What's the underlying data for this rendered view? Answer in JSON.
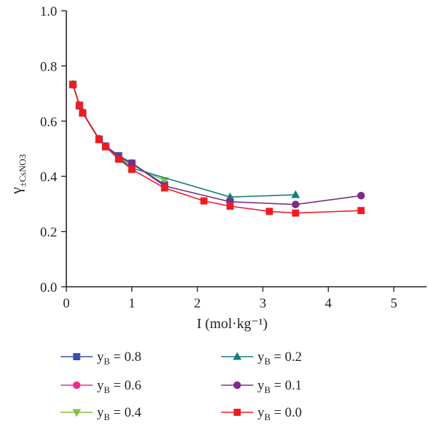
{
  "chart_data": {
    "type": "line",
    "xlabel": "I (mol·kg⁻¹)",
    "ylabel": {
      "main": "γ",
      "sub": "±CsNO3"
    },
    "xlim": [
      0,
      5.5
    ],
    "ylim": [
      0,
      1.0
    ],
    "x_ticks": [
      0,
      1,
      2,
      3,
      4,
      5
    ],
    "y_ticks": [
      0.0,
      0.2,
      0.4,
      0.6,
      0.8,
      1.0
    ],
    "x_tick_labels": [
      "0",
      "1",
      "2",
      "3",
      "4",
      "5"
    ],
    "y_tick_labels": [
      "0.0",
      "0.2",
      "0.4",
      "0.6",
      "0.8",
      "1.0"
    ],
    "grid": false,
    "legend_position": "bottom",
    "series": [
      {
        "name": "y_B = 0.8",
        "label_main": "y",
        "label_sub": "B",
        "label_rest": " = 0.8",
        "color": "#3c4fa8",
        "marker": "square",
        "x": [
          0.1,
          0.2,
          0.25,
          0.5,
          0.6,
          0.8,
          1.0,
          1.5
        ],
        "y": [
          0.732,
          0.655,
          0.63,
          0.535,
          0.51,
          0.475,
          0.448,
          0.37
        ]
      },
      {
        "name": "y_B = 0.6",
        "label_main": "y",
        "label_sub": "B",
        "label_rest": " = 0.6",
        "color": "#ec2d8f",
        "marker": "circle",
        "x": [
          0.1,
          0.2,
          0.25,
          0.5,
          0.6,
          0.8,
          1.0
        ],
        "y": [
          0.733,
          0.657,
          0.632,
          0.536,
          0.508,
          0.468,
          0.44
        ]
      },
      {
        "name": "y_B = 0.4",
        "label_main": "y",
        "label_sub": "B",
        "label_rest": " = 0.4",
        "color": "#7dc242",
        "marker": "triangle-down",
        "x": [
          0.1,
          0.2,
          0.25,
          0.5,
          0.6,
          0.8,
          1.0,
          1.5
        ],
        "y": [
          0.735,
          0.66,
          0.632,
          0.535,
          0.51,
          0.47,
          0.44,
          0.385
        ]
      },
      {
        "name": "y_B = 0.2",
        "label_main": "y",
        "label_sub": "B",
        "label_rest": " = 0.2",
        "color": "#127e7e",
        "marker": "triangle-up",
        "x": [
          0.1,
          0.2,
          0.25,
          0.5,
          0.6,
          0.8,
          1.0,
          2.5,
          3.5
        ],
        "y": [
          0.734,
          0.657,
          0.63,
          0.535,
          0.508,
          0.467,
          0.43,
          0.325,
          0.333
        ]
      },
      {
        "name": "y_B = 0.1",
        "label_main": "y",
        "label_sub": "B",
        "label_rest": " = 0.1",
        "color": "#7b2c87",
        "marker": "circle",
        "x": [
          0.1,
          0.2,
          0.25,
          0.5,
          0.6,
          0.8,
          1.0,
          1.5,
          2.5,
          3.5,
          4.5
        ],
        "y": [
          0.732,
          0.656,
          0.63,
          0.535,
          0.509,
          0.47,
          0.448,
          0.365,
          0.308,
          0.298,
          0.33
        ]
      },
      {
        "name": "y_B = 0.0",
        "label_main": "y",
        "label_sub": "B",
        "label_rest": " = 0.0",
        "color": "#ed1c24",
        "marker": "square",
        "x": [
          0.1,
          0.2,
          0.25,
          0.5,
          0.6,
          0.8,
          1.0,
          1.5,
          2.1,
          2.5,
          3.1,
          3.5,
          4.5
        ],
        "y": [
          0.733,
          0.657,
          0.629,
          0.533,
          0.507,
          0.462,
          0.425,
          0.358,
          0.311,
          0.292,
          0.273,
          0.267,
          0.276
        ]
      }
    ]
  }
}
